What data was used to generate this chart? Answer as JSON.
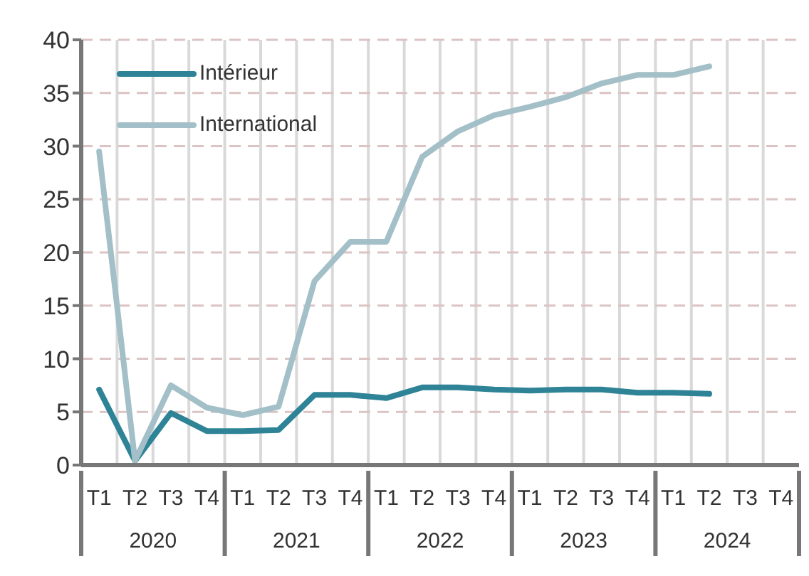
{
  "chart_data": {
    "type": "line",
    "categories": [
      "T1",
      "T2",
      "T3",
      "T4",
      "T1",
      "T2",
      "T3",
      "T4",
      "T1",
      "T2",
      "T3",
      "T4",
      "T1",
      "T2",
      "T3",
      "T4",
      "T1",
      "T2",
      "T3",
      "T4"
    ],
    "annotations": [
      "2020",
      "2021",
      "2022",
      "2023",
      "2024"
    ],
    "series": [
      {
        "name": "Intérieur",
        "color": "#2e8496",
        "values": [
          7.1,
          0.4,
          4.9,
          3.2,
          3.2,
          3.3,
          6.6,
          6.6,
          6.3,
          7.3,
          7.3,
          7.1,
          7.0,
          7.1,
          7.1,
          6.8,
          6.8,
          6.7,
          null,
          null
        ]
      },
      {
        "name": "International",
        "color": "#a3bfc7",
        "values": [
          29.5,
          0.4,
          7.5,
          5.4,
          4.7,
          5.5,
          17.3,
          21,
          21,
          29,
          31.4,
          32.9,
          33.7,
          34.6,
          35.9,
          36.7,
          36.7,
          37.5,
          null,
          null
        ]
      }
    ],
    "ylim": [
      0,
      40
    ],
    "yticks": [
      0,
      5,
      10,
      15,
      20,
      25,
      30,
      35,
      40
    ],
    "grid": true,
    "legend": "top left",
    "marker": "none",
    "line_style": "solid"
  }
}
